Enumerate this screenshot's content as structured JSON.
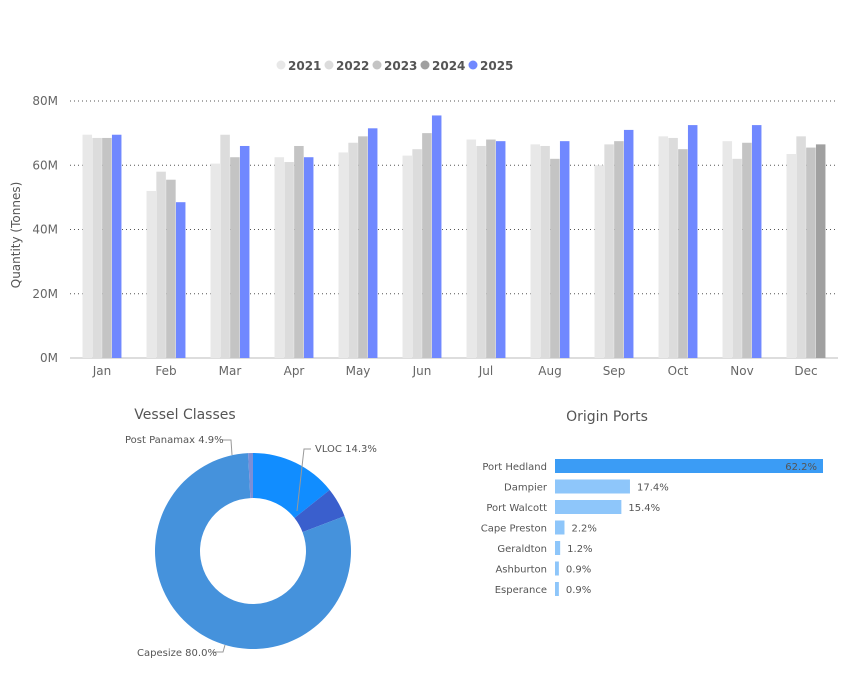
{
  "chart_data": [
    {
      "type": "bar",
      "title": "",
      "xlabel": "",
      "ylabel": "Quantity (Tonnes)",
      "ylim": [
        0,
        80000000
      ],
      "ytick_labels": [
        "0M",
        "20M",
        "40M",
        "60M",
        "80M"
      ],
      "grid": true,
      "legend_position": "top",
      "categories": [
        "Jan",
        "Feb",
        "Mar",
        "Apr",
        "May",
        "Jun",
        "Jul",
        "Aug",
        "Sep",
        "Oct",
        "Nov",
        "Dec"
      ],
      "series": [
        {
          "name": "2021",
          "color": "#e8e8e8",
          "values": [
            69500000,
            52000000,
            60500000,
            62500000,
            64000000,
            63000000,
            68000000,
            66500000,
            60000000,
            69000000,
            67500000,
            63500000
          ]
        },
        {
          "name": "2022",
          "color": "#dcdcdc",
          "values": [
            68500000,
            58000000,
            69500000,
            61000000,
            67000000,
            65000000,
            66000000,
            66000000,
            66500000,
            68500000,
            62000000,
            69000000
          ]
        },
        {
          "name": "2023",
          "color": "#c4c4c4",
          "values": [
            68500000,
            55500000,
            62500000,
            66000000,
            69000000,
            70000000,
            68000000,
            62000000,
            67500000,
            65000000,
            67000000,
            65500000
          ]
        },
        {
          "name": "2024",
          "color": "#a0a0a0",
          "values": [
            null,
            null,
            null,
            null,
            null,
            null,
            null,
            null,
            null,
            null,
            null,
            66500000
          ]
        },
        {
          "name": "2025",
          "color": "#7088ff",
          "values": [
            69500000,
            48500000,
            66000000,
            62500000,
            71500000,
            75500000,
            67500000,
            67500000,
            71000000,
            72500000,
            72500000,
            null
          ]
        }
      ]
    },
    {
      "type": "pie",
      "title": "Vessel Classes",
      "labels": [
        "VLOC",
        "Post Panamax",
        "Capesize",
        "Other"
      ],
      "values": [
        14.3,
        4.9,
        80.0,
        0.8
      ],
      "display_labels": [
        "VLOC 14.3%",
        "Post Panamax 4.9%",
        "Capesize 80.0%",
        ""
      ],
      "colors": [
        "#118dff",
        "#3a5fcd",
        "#4592dc",
        "#7b8ed6"
      ]
    },
    {
      "type": "bar",
      "orientation": "horizontal",
      "title": "Origin Ports",
      "categories": [
        "Port Hedland",
        "Dampier",
        "Port Walcott",
        "Cape Preston",
        "Geraldton",
        "Ashburton",
        "Esperance"
      ],
      "values": [
        62.2,
        17.4,
        15.4,
        2.2,
        1.2,
        0.9,
        0.9
      ],
      "value_labels": [
        "62.2%",
        "17.4%",
        "15.4%",
        "2.2%",
        "1.2%",
        "0.9%",
        "0.9%"
      ],
      "highlight_color": "#3b9cf5",
      "bar_color": "#8ec6fa"
    }
  ]
}
